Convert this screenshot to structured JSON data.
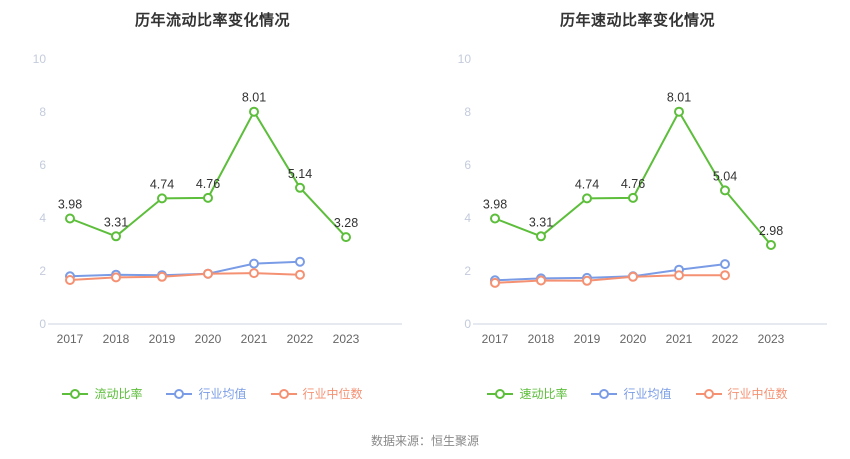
{
  "source": "数据来源：恒生聚源",
  "colors": {
    "title": "#333333",
    "y_tick_label": "#c3cbdc",
    "x_tick_label": "#666666",
    "axis_line": "#ccd3e0",
    "data_label": "#333333",
    "source_text": "#888888",
    "marker_fill": "#ffffff"
  },
  "chart_data": [
    {
      "type": "line",
      "title": "历年流动比率变化情况",
      "x": [
        "2017",
        "2018",
        "2019",
        "2020",
        "2021",
        "2022",
        "2023"
      ],
      "ylim": [
        0,
        10
      ],
      "yticks": [
        0,
        2,
        4,
        6,
        8,
        10
      ],
      "grid": false,
      "legend_position": "bottom",
      "series": [
        {
          "name": "流动比率",
          "color": "#5cbe3a",
          "data_labels": true,
          "values": [
            3.98,
            3.31,
            4.74,
            4.76,
            8.01,
            5.14,
            3.28
          ]
        },
        {
          "name": "行业均值",
          "color": "#7a9ce6",
          "data_labels": false,
          "values": [
            1.8,
            1.86,
            1.84,
            1.9,
            2.28,
            2.35
          ]
        },
        {
          "name": "行业中位数",
          "color": "#f59173",
          "data_labels": false,
          "values": [
            1.66,
            1.76,
            1.78,
            1.9,
            1.92,
            1.86
          ]
        }
      ]
    },
    {
      "type": "line",
      "title": "历年速动比率变化情况",
      "x": [
        "2017",
        "2018",
        "2019",
        "2020",
        "2021",
        "2022",
        "2023"
      ],
      "ylim": [
        0,
        10
      ],
      "yticks": [
        0,
        2,
        4,
        6,
        8,
        10
      ],
      "grid": false,
      "legend_position": "bottom",
      "series": [
        {
          "name": "速动比率",
          "color": "#5cbe3a",
          "data_labels": true,
          "values": [
            3.98,
            3.31,
            4.74,
            4.76,
            8.01,
            5.04,
            2.98
          ]
        },
        {
          "name": "行业均值",
          "color": "#7a9ce6",
          "data_labels": false,
          "values": [
            1.65,
            1.72,
            1.74,
            1.8,
            2.05,
            2.26
          ]
        },
        {
          "name": "行业中位数",
          "color": "#f59173",
          "data_labels": false,
          "values": [
            1.55,
            1.64,
            1.63,
            1.78,
            1.84,
            1.84
          ]
        }
      ]
    }
  ]
}
